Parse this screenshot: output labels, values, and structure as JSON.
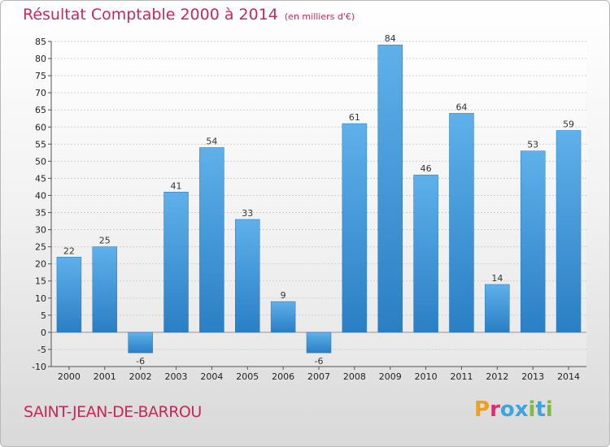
{
  "header": {
    "title": "Résultat Comptable 2000 à 2014",
    "subtitle": "(en milliers d'€)"
  },
  "footer": {
    "town": "SAINT-JEAN-DE-BARROU",
    "logo_text": "Proxiti",
    "logo_colors": [
      "#f0a020",
      "#d63070",
      "#3aa6dd",
      "#3aa6dd",
      "#7bbd3a",
      "#3aa6dd",
      "#7bbd3a"
    ]
  },
  "chart_data": {
    "type": "bar",
    "title": "Résultat Comptable 2000 à 2014",
    "subtitle": "(en milliers d'€)",
    "categories": [
      "2000",
      "2001",
      "2002",
      "2003",
      "2004",
      "2005",
      "2006",
      "2007",
      "2008",
      "2009",
      "2010",
      "2011",
      "2012",
      "2013",
      "2014"
    ],
    "values": [
      22,
      25,
      -6,
      41,
      54,
      33,
      9,
      -6,
      61,
      84,
      46,
      64,
      14,
      53,
      59
    ],
    "value_labels": [
      "22",
      "25",
      "-6",
      "41",
      "54",
      "33",
      "9",
      "-6",
      "61",
      "84",
      "46",
      "64",
      "14",
      "53",
      "59"
    ],
    "ylim": [
      -10,
      85
    ],
    "yticks": [
      -10,
      -5,
      0,
      5,
      10,
      15,
      20,
      25,
      30,
      35,
      40,
      45,
      50,
      55,
      60,
      65,
      70,
      75,
      80,
      85
    ],
    "ytick_labels": [
      "-10",
      "-5",
      "0",
      "5",
      "10",
      "15",
      "20",
      "25",
      "30",
      "35",
      "40",
      "45",
      "50",
      "55",
      "60",
      "65",
      "70",
      "75",
      "80",
      "85"
    ],
    "xlabel": "",
    "ylabel": "",
    "grid": true,
    "bar_color": "#3d96d6"
  }
}
